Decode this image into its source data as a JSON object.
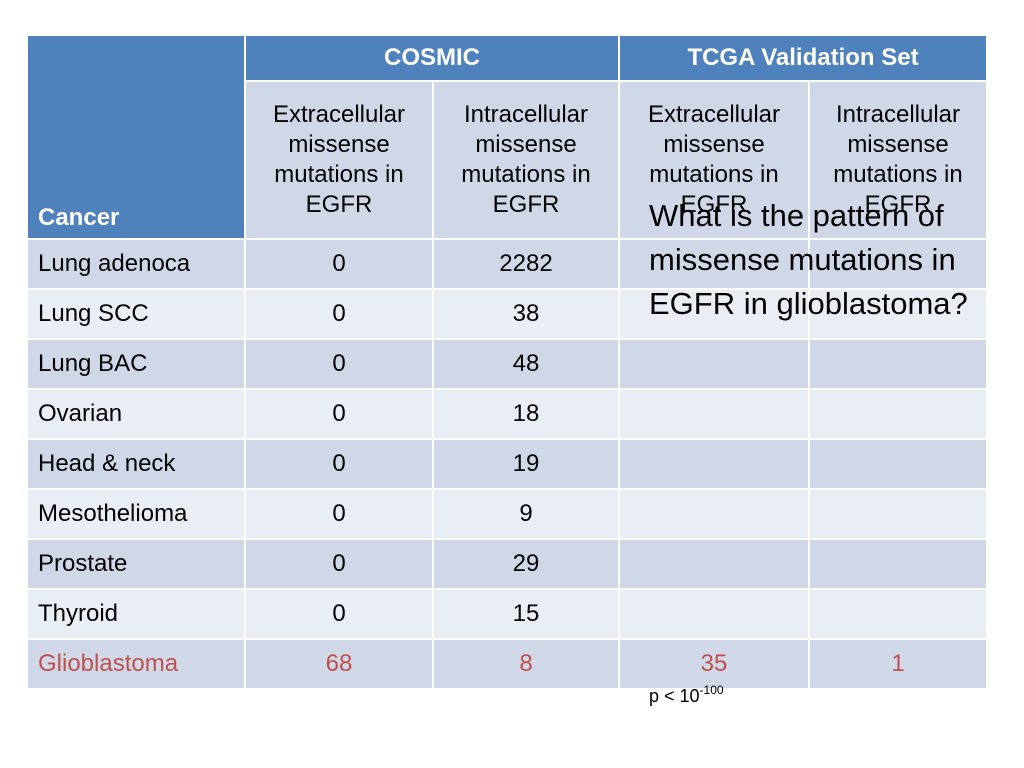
{
  "table": {
    "corner_label": "Cancer",
    "groups": [
      "COSMIC",
      "TCGA Validation Set"
    ],
    "subheaders": [
      "Extracellular missense mutations in EGFR",
      "Intracellular missense mutations in EGFR",
      "Extracellular missense mutations in EGFR",
      "Intracellular missense mutations in EGFR"
    ],
    "rows": [
      {
        "name": "Lung adenoca",
        "c1": "0",
        "c2": "2282",
        "c3": "",
        "c4": ""
      },
      {
        "name": "Lung SCC",
        "c1": "0",
        "c2": "38",
        "c3": "",
        "c4": ""
      },
      {
        "name": "Lung BAC",
        "c1": "0",
        "c2": "48",
        "c3": "",
        "c4": ""
      },
      {
        "name": "Ovarian",
        "c1": "0",
        "c2": "18",
        "c3": "",
        "c4": ""
      },
      {
        "name": "Head & neck",
        "c1": "0",
        "c2": "19",
        "c3": "",
        "c4": ""
      },
      {
        "name": "Mesothelioma",
        "c1": "0",
        "c2": "9",
        "c3": "",
        "c4": ""
      },
      {
        "name": "Prostate",
        "c1": "0",
        "c2": "29",
        "c3": "",
        "c4": ""
      },
      {
        "name": "Thyroid",
        "c1": "0",
        "c2": "15",
        "c3": "",
        "c4": ""
      },
      {
        "name": "Glioblastoma",
        "c1": "68",
        "c2": "8",
        "c3": "35",
        "c4": "1"
      }
    ]
  },
  "callout": {
    "question": "What is the pattern of missense mutations in EGFR in glioblastoma?"
  },
  "pvalue": {
    "prefix": "p < 10",
    "exponent": "-100"
  },
  "colors": {
    "header_blue": "#4f81bd",
    "row_dark": "#d0d8e8",
    "row_light": "#e9edf4",
    "highlight_red": "#c0504d"
  }
}
